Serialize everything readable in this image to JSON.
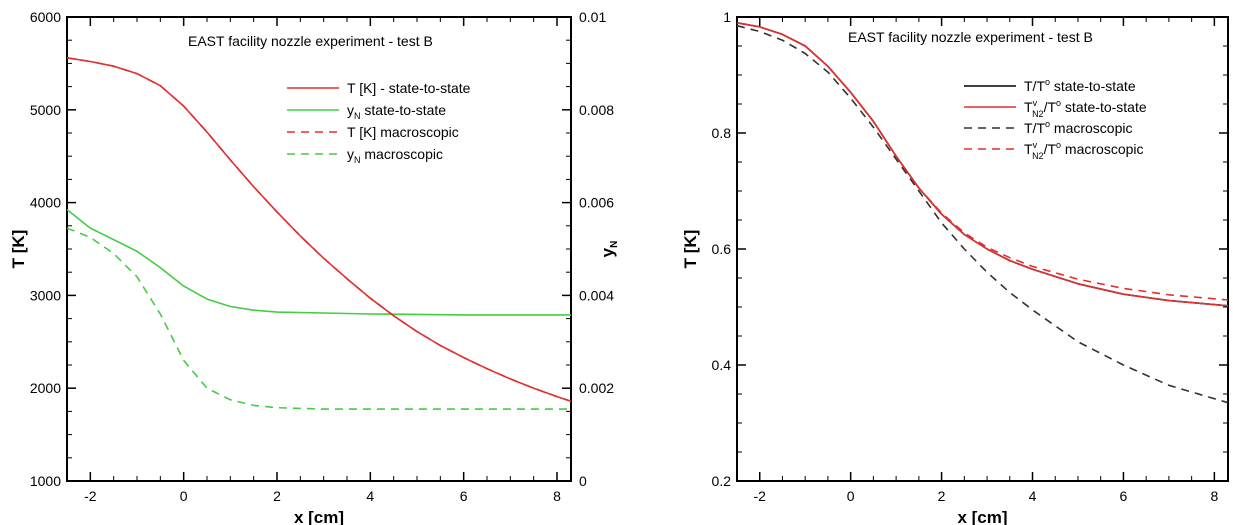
{
  "chart_data": [
    {
      "type": "line",
      "title": "EAST facility nozzle experiment - test B",
      "xlabel": "x [cm]",
      "ylabel": "T [K]",
      "y2label": "yN",
      "xlim": [
        -2.5,
        8.3
      ],
      "ylim": [
        1000,
        6000
      ],
      "y2lim": [
        0,
        0.01
      ],
      "xticks": [
        -2,
        0,
        2,
        4,
        6,
        8
      ],
      "yticks": [
        1000,
        2000,
        3000,
        4000,
        5000,
        6000
      ],
      "y2ticks": [
        0,
        0.002,
        0.004,
        0.006,
        0.008,
        0.01
      ],
      "xtick_labels": [
        "-2",
        "0",
        "2",
        "4",
        "6",
        "8"
      ],
      "ytick_labels": [
        "1000",
        "2000",
        "3000",
        "4000",
        "5000",
        "6000"
      ],
      "y2tick_labels": [
        "0",
        "0.002",
        "0.004",
        "0.006",
        "0.008",
        "0.01"
      ],
      "legend_position": "top-right",
      "grid": false,
      "series": [
        {
          "name": "T [K] - state-to-state",
          "legend_main": "T [K] - state-to-state",
          "legend_sub": "",
          "legend_tail": "",
          "axis": "left",
          "color": "#e03030",
          "dash": "solid",
          "x": [
            -2.5,
            -2,
            -1.5,
            -1,
            -0.5,
            0,
            0.5,
            1,
            1.5,
            2,
            2.5,
            3,
            3.5,
            4,
            4.5,
            5,
            5.5,
            6,
            6.5,
            7,
            7.5,
            8,
            8.3
          ],
          "y": [
            5560,
            5520,
            5470,
            5390,
            5260,
            5040,
            4760,
            4460,
            4170,
            3900,
            3640,
            3400,
            3180,
            2970,
            2780,
            2610,
            2460,
            2330,
            2210,
            2100,
            2000,
            1910,
            1860
          ]
        },
        {
          "name": "yN state-to-state",
          "legend_main": "y",
          "legend_sub": "N",
          "legend_tail": " state-to-state",
          "axis": "right",
          "color": "#44cc44",
          "dash": "solid",
          "x": [
            -2.5,
            -2,
            -1.5,
            -1,
            -0.5,
            0,
            0.5,
            1,
            1.5,
            2,
            3,
            4,
            5,
            6,
            7,
            8.3
          ],
          "y": [
            0.00585,
            0.00545,
            0.0052,
            0.00495,
            0.0046,
            0.0042,
            0.00392,
            0.00376,
            0.00368,
            0.00364,
            0.00362,
            0.0036,
            0.00359,
            0.00358,
            0.00358,
            0.00358
          ]
        },
        {
          "name": "T [K] macroscopic",
          "legend_main": "T [K] macroscopic",
          "legend_sub": "",
          "legend_tail": "",
          "axis": "left",
          "color": "#e03030",
          "dash": "8,6",
          "x": [
            -2.5,
            -2,
            -1.5,
            -1,
            -0.5,
            0,
            0.5,
            1,
            1.5,
            2,
            2.5,
            3,
            3.5,
            4,
            4.5,
            5,
            5.5,
            6,
            6.5,
            7,
            7.5,
            8,
            8.3
          ],
          "y": [
            5560,
            5520,
            5470,
            5390,
            5260,
            5040,
            4760,
            4460,
            4170,
            3900,
            3640,
            3400,
            3180,
            2970,
            2780,
            2610,
            2460,
            2330,
            2210,
            2100,
            2000,
            1910,
            1860
          ]
        },
        {
          "name": "yN macroscopic",
          "legend_main": "y",
          "legend_sub": "N",
          "legend_tail": " macroscopic",
          "axis": "right",
          "color": "#44cc44",
          "dash": "8,6",
          "x": [
            -2.5,
            -2,
            -1.5,
            -1,
            -0.5,
            0,
            0.5,
            1,
            1.5,
            2,
            3,
            4,
            5,
            6,
            7,
            8.3
          ],
          "y": [
            0.00545,
            0.00525,
            0.0049,
            0.0044,
            0.0036,
            0.0026,
            0.002,
            0.00175,
            0.00163,
            0.00158,
            0.00155,
            0.00155,
            0.00155,
            0.00155,
            0.00155,
            0.00155
          ]
        }
      ]
    },
    {
      "type": "line",
      "title": "EAST facility nozzle experiment - test B",
      "xlabel": "x [cm]",
      "ylabel": "T [K]",
      "xlim": [
        -2.5,
        8.3
      ],
      "ylim": [
        0.2,
        1.0
      ],
      "xticks": [
        -2,
        0,
        2,
        4,
        6,
        8
      ],
      "yticks": [
        0.2,
        0.4,
        0.6,
        0.8,
        1.0
      ],
      "xtick_labels": [
        "-2",
        "0",
        "2",
        "4",
        "6",
        "8"
      ],
      "ytick_labels": [
        "0.2",
        "0.4",
        "0.6",
        "0.8",
        "1"
      ],
      "legend_position": "top-right",
      "grid": false,
      "series": [
        {
          "name": "T/T° state-to-state",
          "legend_main": "T/T",
          "legend_sup": "o",
          "legend_sub": "",
          "legend_tail": " state-to-state",
          "color": "#000000",
          "dash": "solid",
          "x": [
            -2.5,
            -2,
            -1.5,
            -1,
            -0.5,
            0,
            0.5,
            1,
            1.5,
            2,
            2.5,
            3,
            3.5,
            4,
            5,
            6,
            7,
            8.3
          ],
          "y": [
            0.99,
            0.983,
            0.97,
            0.95,
            0.915,
            0.87,
            0.82,
            0.76,
            0.705,
            0.66,
            0.625,
            0.6,
            0.58,
            0.565,
            0.54,
            0.522,
            0.511,
            0.502
          ]
        },
        {
          "name": "TvN2/T° state-to-state",
          "legend_main": "T",
          "legend_sup": "v",
          "legend_sub": "N2",
          "legend_mid": "/T",
          "legend_sup2": "o",
          "legend_tail": " state-to-state",
          "color": "#e03030",
          "dash": "solid",
          "x": [
            -2.5,
            -2,
            -1.5,
            -1,
            -0.5,
            0,
            0.5,
            1,
            1.5,
            2,
            2.5,
            3,
            3.5,
            4,
            5,
            6,
            7,
            8.3
          ],
          "y": [
            0.99,
            0.983,
            0.97,
            0.95,
            0.915,
            0.87,
            0.82,
            0.76,
            0.705,
            0.66,
            0.625,
            0.6,
            0.58,
            0.565,
            0.54,
            0.522,
            0.511,
            0.502
          ]
        },
        {
          "name": "T/T° macroscopic",
          "legend_main": "T/T",
          "legend_sup": "o",
          "legend_sub": "",
          "legend_tail": " macroscopic",
          "color": "#333333",
          "dash": "8,6",
          "x": [
            -2.5,
            -2,
            -1.5,
            -1,
            -0.5,
            0,
            0.5,
            1,
            1.5,
            2,
            2.5,
            3,
            3.5,
            4,
            5,
            6,
            7,
            8.3
          ],
          "y": [
            0.985,
            0.975,
            0.96,
            0.937,
            0.905,
            0.86,
            0.81,
            0.755,
            0.7,
            0.645,
            0.6,
            0.56,
            0.525,
            0.495,
            0.44,
            0.4,
            0.365,
            0.335
          ]
        },
        {
          "name": "TvN2/T° macroscopic",
          "legend_main": "T",
          "legend_sup": "v",
          "legend_sub": "N2",
          "legend_mid": "/T",
          "legend_sup2": "o",
          "legend_tail": " macroscopic",
          "color": "#e03030",
          "dash": "8,6",
          "x": [
            -2.5,
            -2,
            -1.5,
            -1,
            -0.5,
            0,
            0.5,
            1,
            1.5,
            2,
            2.5,
            3,
            3.5,
            4,
            5,
            6,
            7,
            8.3
          ],
          "y": [
            0.99,
            0.983,
            0.97,
            0.95,
            0.915,
            0.87,
            0.82,
            0.76,
            0.705,
            0.662,
            0.628,
            0.603,
            0.585,
            0.57,
            0.548,
            0.532,
            0.521,
            0.512
          ]
        }
      ]
    }
  ]
}
